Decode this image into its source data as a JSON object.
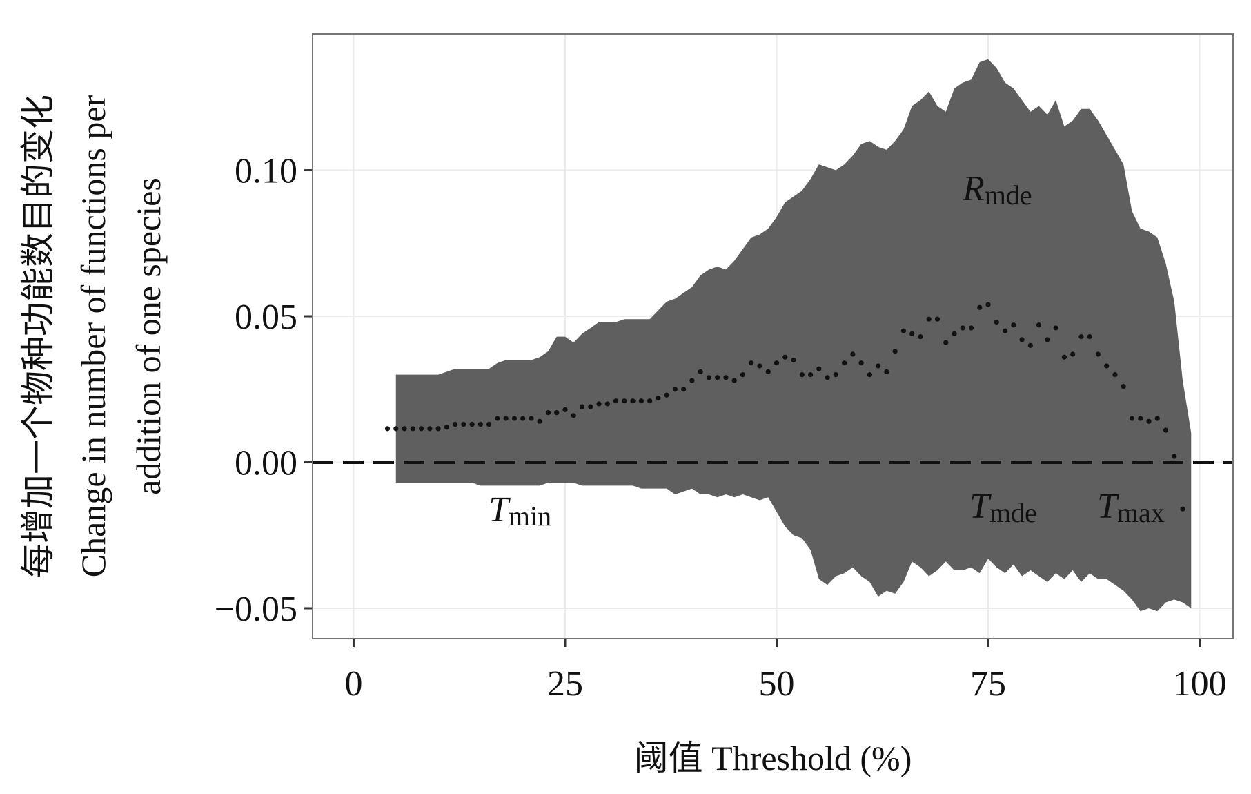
{
  "chart_data": {
    "type": "ribbon",
    "ylabel": [
      "每增加一个物种功能数目的变化",
      "Change in number of functions per",
      "addition of one species"
    ],
    "xlabel": "阈值 Threshold (%)",
    "xlim": [
      -4.85,
      103.95
    ],
    "ylim": [
      -0.0604,
      0.1467
    ],
    "xticks": [
      0,
      25,
      50,
      75,
      100
    ],
    "yticks": [
      {
        "value": -0.05,
        "label": "−0.05"
      },
      {
        "value": 0,
        "label": "0.00"
      },
      {
        "value": 0.05,
        "label": "0.05"
      },
      {
        "value": 0.1,
        "label": "0.10"
      }
    ],
    "grid": true,
    "band": {
      "color": "#5f5f5f",
      "x": [
        5,
        6,
        7,
        8,
        9,
        10,
        11,
        12,
        13,
        14,
        15,
        16,
        17,
        18,
        19,
        20,
        21,
        22,
        23,
        24,
        25,
        26,
        27,
        28,
        29,
        30,
        31,
        32,
        33,
        34,
        35,
        36,
        37,
        38,
        39,
        40,
        41,
        42,
        43,
        44,
        45,
        46,
        47,
        48,
        49,
        50,
        51,
        52,
        53,
        54,
        55,
        56,
        57,
        58,
        59,
        60,
        61,
        62,
        63,
        64,
        65,
        66,
        67,
        68,
        69,
        70,
        71,
        72,
        73,
        74,
        75,
        76,
        77,
        78,
        79,
        80,
        81,
        82,
        83,
        84,
        85,
        86,
        87,
        88,
        89,
        90,
        91,
        92,
        93,
        94,
        95,
        96,
        97,
        98,
        99
      ],
      "upper": [
        0.03,
        0.03,
        0.03,
        0.03,
        0.03,
        0.03,
        0.031,
        0.032,
        0.032,
        0.032,
        0.032,
        0.032,
        0.034,
        0.035,
        0.035,
        0.035,
        0.035,
        0.036,
        0.038,
        0.043,
        0.043,
        0.041,
        0.044,
        0.046,
        0.048,
        0.048,
        0.048,
        0.049,
        0.049,
        0.049,
        0.049,
        0.052,
        0.055,
        0.056,
        0.058,
        0.06,
        0.064,
        0.066,
        0.067,
        0.066,
        0.069,
        0.073,
        0.077,
        0.078,
        0.08,
        0.084,
        0.089,
        0.091,
        0.093,
        0.097,
        0.102,
        0.101,
        0.1,
        0.102,
        0.105,
        0.109,
        0.11,
        0.108,
        0.107,
        0.11,
        0.114,
        0.122,
        0.124,
        0.127,
        0.122,
        0.12,
        0.128,
        0.13,
        0.131,
        0.137,
        0.138,
        0.135,
        0.13,
        0.128,
        0.124,
        0.12,
        0.122,
        0.119,
        0.124,
        0.115,
        0.117,
        0.121,
        0.121,
        0.117,
        0.112,
        0.107,
        0.102,
        0.086,
        0.08,
        0.079,
        0.077,
        0.068,
        0.055,
        0.028,
        0.01
      ],
      "lower": [
        -0.007,
        -0.007,
        -0.007,
        -0.007,
        -0.007,
        -0.007,
        -0.007,
        -0.007,
        -0.007,
        -0.007,
        -0.008,
        -0.008,
        -0.008,
        -0.008,
        -0.008,
        -0.008,
        -0.008,
        -0.008,
        -0.007,
        -0.007,
        -0.007,
        -0.007,
        -0.008,
        -0.008,
        -0.008,
        -0.008,
        -0.008,
        -0.008,
        -0.008,
        -0.009,
        -0.009,
        -0.009,
        -0.009,
        -0.011,
        -0.01,
        -0.009,
        -0.011,
        -0.011,
        -0.012,
        -0.011,
        -0.012,
        -0.011,
        -0.012,
        -0.013,
        -0.012,
        -0.017,
        -0.022,
        -0.025,
        -0.026,
        -0.03,
        -0.04,
        -0.042,
        -0.039,
        -0.038,
        -0.036,
        -0.039,
        -0.041,
        -0.046,
        -0.044,
        -0.045,
        -0.041,
        -0.034,
        -0.036,
        -0.039,
        -0.037,
        -0.034,
        -0.037,
        -0.037,
        -0.036,
        -0.038,
        -0.033,
        -0.036,
        -0.038,
        -0.035,
        -0.039,
        -0.037,
        -0.039,
        -0.041,
        -0.038,
        -0.04,
        -0.037,
        -0.041,
        -0.038,
        -0.04,
        -0.04,
        -0.042,
        -0.044,
        -0.047,
        -0.051,
        -0.05,
        -0.051,
        -0.048,
        -0.047,
        -0.048,
        -0.05
      ]
    },
    "points": {
      "color": "#111111",
      "x": [
        4,
        5,
        6,
        7,
        8,
        9,
        10,
        11,
        12,
        13,
        14,
        15,
        16,
        17,
        18,
        19,
        20,
        21,
        22,
        23,
        24,
        25,
        26,
        27,
        28,
        29,
        30,
        31,
        32,
        33,
        34,
        35,
        36,
        37,
        38,
        39,
        40,
        41,
        42,
        43,
        44,
        45,
        46,
        47,
        48,
        49,
        50,
        51,
        52,
        53,
        54,
        55,
        56,
        57,
        58,
        59,
        60,
        61,
        62,
        63,
        64,
        65,
        66,
        67,
        68,
        69,
        70,
        71,
        72,
        73,
        74,
        75,
        76,
        77,
        78,
        79,
        80,
        81,
        82,
        83,
        84,
        85,
        86,
        87,
        88,
        89,
        90,
        91,
        92,
        93,
        94,
        95,
        96,
        97,
        98
      ],
      "values": [
        0.0115,
        0.0115,
        0.0115,
        0.0115,
        0.0115,
        0.0115,
        0.0115,
        0.012,
        0.013,
        0.013,
        0.013,
        0.013,
        0.013,
        0.015,
        0.015,
        0.015,
        0.015,
        0.015,
        0.014,
        0.017,
        0.017,
        0.018,
        0.016,
        0.019,
        0.019,
        0.02,
        0.02,
        0.021,
        0.021,
        0.021,
        0.021,
        0.021,
        0.022,
        0.023,
        0.025,
        0.025,
        0.028,
        0.031,
        0.029,
        0.029,
        0.029,
        0.028,
        0.03,
        0.034,
        0.033,
        0.031,
        0.034,
        0.036,
        0.035,
        0.03,
        0.03,
        0.032,
        0.029,
        0.03,
        0.034,
        0.037,
        0.034,
        0.03,
        0.033,
        0.031,
        0.038,
        0.045,
        0.044,
        0.043,
        0.049,
        0.049,
        0.041,
        0.044,
        0.046,
        0.046,
        0.053,
        0.054,
        0.048,
        0.045,
        0.047,
        0.042,
        0.04,
        0.047,
        0.042,
        0.046,
        0.036,
        0.037,
        0.043,
        0.043,
        0.037,
        0.033,
        0.03,
        0.026,
        0.015,
        0.015,
        0.014,
        0.015,
        0.011,
        0.002,
        -0.016
      ]
    },
    "hline": {
      "value": 0,
      "color": "#111111",
      "dashed": true
    },
    "annotations": [
      {
        "main": "R",
        "sub": "mde"
      },
      {
        "main": "T",
        "sub": "min"
      },
      {
        "main": "T",
        "sub": "mde"
      },
      {
        "main": "T",
        "sub": "max"
      }
    ]
  }
}
